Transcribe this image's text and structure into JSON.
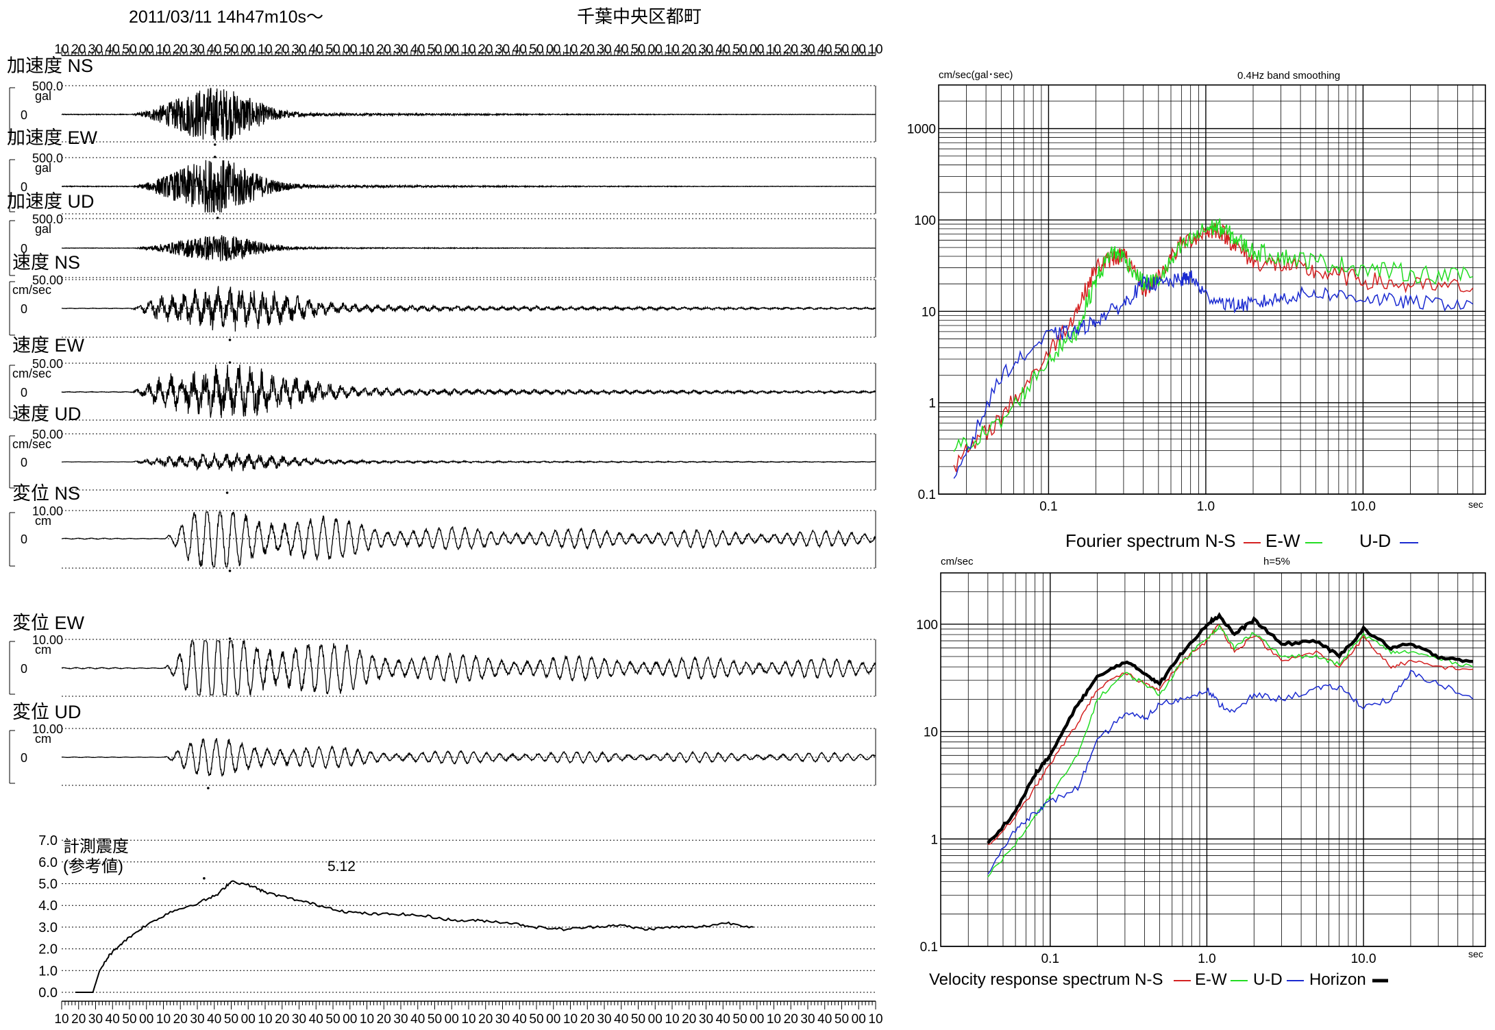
{
  "header": {
    "datetime": "2011/03/11  14h47m10s〜",
    "station": "千葉中央区都町"
  },
  "time_ticks": [
    "10",
    "20",
    "30",
    "40",
    "50",
    "00",
    "10",
    "20",
    "30",
    "40",
    "50",
    "00",
    "10",
    "20",
    "30",
    "40",
    "50",
    "00",
    "10",
    "20",
    "30",
    "40",
    "50",
    "00",
    "10",
    "20",
    "30",
    "40",
    "50",
    "00",
    "10",
    "20",
    "30",
    "40",
    "50",
    "00",
    "10",
    "20",
    "30",
    "40",
    "50",
    "00",
    "10",
    "20",
    "30",
    "40",
    "50",
    "00",
    "10"
  ],
  "traces": [
    {
      "label": "加速度 NS",
      "scale": "500.0",
      "unit": "gal",
      "zero": "0",
      "amp": 0.55,
      "kind": "acc",
      "peak_t": 11.3,
      "peak_dir": -1
    },
    {
      "label": "加速度 EW",
      "scale": "500.0",
      "unit": "gal",
      "zero": "0",
      "amp": 0.55,
      "kind": "acc",
      "peak_t": 11.3,
      "peak_dir": 1
    },
    {
      "label": "加速度 UD",
      "scale": "500.0",
      "unit": "gal",
      "zero": "0",
      "amp": 0.25,
      "kind": "acc",
      "peak_t": 11.5,
      "peak_dir": 1
    },
    {
      "label": "速度 NS",
      "scale": "50.00",
      "unit": "cm/sec",
      "zero": "0",
      "amp": 0.45,
      "kind": "vel",
      "peak_t": 12.4,
      "peak_dir": -1
    },
    {
      "label": "速度 EW",
      "scale": "50.00",
      "unit": "cm/sec",
      "zero": "0",
      "amp": 0.55,
      "kind": "vel",
      "peak_t": 12.4,
      "peak_dir": 1
    },
    {
      "label": "速度 UD",
      "scale": "50.00",
      "unit": "cm/sec",
      "zero": "0",
      "amp": 0.18,
      "kind": "vel",
      "peak_t": 12.2,
      "peak_dir": -1
    },
    {
      "label": "変位 NS",
      "scale": "10.00",
      "unit": "cm",
      "zero": "0",
      "amp": 0.6,
      "kind": "disp",
      "peak_t": 12.4,
      "peak_dir": -1
    },
    {
      "label": "変位 EW",
      "scale": "10.00",
      "unit": "cm",
      "zero": "0",
      "amp": 0.75,
      "kind": "disp",
      "peak_t": 12.4,
      "peak_dir": 1
    },
    {
      "label": "変位 UD",
      "scale": "10.00",
      "unit": "cm",
      "zero": "0",
      "amp": 0.35,
      "kind": "disp",
      "peak_t": 10.8,
      "peak_dir": -1
    }
  ],
  "intensity": {
    "label_line1": "計測震度",
    "label_line2": "(参考値)",
    "peak_label": "5.12",
    "peak_value": 5.12,
    "yticks": [
      "7.0",
      "6.0",
      "5.0",
      "4.0",
      "3.0",
      "2.0",
      "1.0",
      "0.0"
    ]
  },
  "fourier": {
    "unit_label": "cm/sec(gal･sec)",
    "smoothing_label": "0.4Hz band smoothing",
    "yticks": [
      "1000",
      "100",
      "10",
      "1",
      "0.1"
    ],
    "xticks": [
      "0.1",
      "1.0",
      "10.0"
    ],
    "x_unit": "sec",
    "caption": "Fourier spectrum  N-S",
    "legend": [
      {
        "name": "N-S",
        "color": "#d42020"
      },
      {
        "name": "E-W",
        "color": "#22dd22"
      },
      {
        "name": "U-D",
        "color": "#1a2ad0"
      }
    ],
    "legend_ew": "E-W",
    "legend_ud": "U-D"
  },
  "response": {
    "unit_label": "cm/sec",
    "damping_label": "h=5%",
    "yticks": [
      "100",
      "10",
      "1",
      "0.1"
    ],
    "xticks": [
      "0.1",
      "1.0",
      "10.0"
    ],
    "x_unit": "sec",
    "caption": "Velocity response spectrum N-S",
    "legend_ew": "E-W",
    "legend_ud": "U-D",
    "legend_h": "Horizon",
    "colors": {
      "ns": "#d42020",
      "ew": "#22dd22",
      "ud": "#1a2ad0",
      "horizon": "#000000"
    }
  },
  "chart_data": [
    {
      "type": "line",
      "title": "0.4Hz band smoothing",
      "ylabel": "cm/sec(gal･sec)",
      "xlabel": "sec",
      "xscale": "log",
      "yscale": "log",
      "xlim": [
        0.02,
        60
      ],
      "ylim": [
        0.1,
        3000
      ],
      "series": [
        {
          "name": "N-S",
          "x": [
            0.025,
            0.05,
            0.1,
            0.15,
            0.2,
            0.25,
            0.3,
            0.4,
            0.5,
            0.7,
            1.0,
            1.2,
            1.5,
            2.0,
            3.0,
            5.0,
            10,
            20,
            50
          ],
          "values": [
            0.2,
            0.7,
            3.5,
            10,
            30,
            38,
            42,
            17,
            24,
            55,
            75,
            80,
            55,
            35,
            32,
            27,
            22,
            19,
            18
          ]
        },
        {
          "name": "E-W",
          "x": [
            0.025,
            0.05,
            0.1,
            0.15,
            0.2,
            0.25,
            0.3,
            0.4,
            0.5,
            0.7,
            1.0,
            1.2,
            1.5,
            2.0,
            3.0,
            5.0,
            10,
            20,
            50
          ],
          "values": [
            0.3,
            0.6,
            3.0,
            6,
            22,
            45,
            40,
            20,
            22,
            50,
            80,
            85,
            65,
            45,
            40,
            35,
            30,
            26,
            24
          ]
        },
        {
          "name": "U-D",
          "x": [
            0.025,
            0.05,
            0.1,
            0.15,
            0.2,
            0.3,
            0.4,
            0.5,
            0.7,
            0.8,
            1.0,
            1.5,
            2.0,
            3.0,
            5.0,
            10,
            20,
            50
          ],
          "values": [
            0.15,
            2.0,
            5.5,
            6,
            8,
            12,
            20,
            20,
            22,
            24,
            15,
            11.5,
            12,
            14,
            16,
            14,
            12.5,
            12
          ]
        }
      ]
    },
    {
      "type": "line",
      "title": "h=5%",
      "ylabel": "cm/sec",
      "xlabel": "sec",
      "xscale": "log",
      "yscale": "log",
      "xlim": [
        0.02,
        60
      ],
      "ylim": [
        0.1,
        300
      ],
      "series": [
        {
          "name": "N-S",
          "x": [
            0.04,
            0.06,
            0.08,
            0.1,
            0.15,
            0.2,
            0.3,
            0.4,
            0.5,
            0.7,
            1.0,
            1.2,
            1.5,
            2.0,
            3.0,
            5.0,
            7.0,
            10,
            15,
            20,
            30,
            50
          ],
          "values": [
            0.85,
            1.6,
            3.0,
            5,
            12,
            25,
            35,
            28,
            25,
            45,
            70,
            100,
            55,
            80,
            45,
            55,
            40,
            75,
            40,
            45,
            40,
            38
          ]
        },
        {
          "name": "E-W",
          "x": [
            0.04,
            0.06,
            0.08,
            0.1,
            0.15,
            0.2,
            0.3,
            0.4,
            0.5,
            0.7,
            1.0,
            1.2,
            1.5,
            2.0,
            3.0,
            5.0,
            7.0,
            10,
            15,
            20,
            30,
            50
          ],
          "values": [
            0.45,
            0.9,
            1.6,
            2.5,
            6,
            20,
            35,
            28,
            22,
            45,
            75,
            95,
            60,
            85,
            50,
            50,
            42,
            80,
            55,
            55,
            48,
            40
          ]
        },
        {
          "name": "U-D",
          "x": [
            0.04,
            0.06,
            0.08,
            0.1,
            0.15,
            0.2,
            0.3,
            0.4,
            0.5,
            0.7,
            1.0,
            1.2,
            1.5,
            2.0,
            3.0,
            5.0,
            7.0,
            10,
            15,
            20,
            30,
            50
          ],
          "values": [
            0.5,
            1.2,
            1.8,
            2.2,
            3,
            8,
            15,
            13,
            18,
            20,
            25,
            18,
            15,
            22,
            20,
            25,
            26,
            17,
            20,
            35,
            28,
            20
          ]
        },
        {
          "name": "Horizon",
          "x": [
            0.04,
            0.06,
            0.08,
            0.1,
            0.15,
            0.2,
            0.3,
            0.4,
            0.5,
            0.7,
            1.0,
            1.2,
            1.5,
            2.0,
            3.0,
            5.0,
            7.0,
            10,
            15,
            20,
            30,
            50
          ],
          "values": [
            0.9,
            1.8,
            4.0,
            6,
            18,
            32,
            45,
            35,
            28,
            55,
            100,
            120,
            80,
            110,
            65,
            70,
            50,
            90,
            60,
            65,
            50,
            45
          ]
        }
      ]
    },
    {
      "type": "line",
      "title": "計測震度 (参考値)",
      "ylim": [
        0,
        7
      ],
      "series": [
        {
          "name": "計測震度",
          "x": [
            0,
            1.3,
            1.8,
            2.5,
            3.5,
            5,
            7,
            9,
            10.5,
            11.5,
            13,
            14,
            16,
            18,
            20,
            22,
            24,
            26,
            28,
            30,
            32,
            34,
            36,
            38,
            40,
            42,
            44,
            46,
            48,
            50
          ],
          "values": [
            0,
            0,
            1.0,
            1.7,
            2.3,
            3.0,
            3.7,
            4.1,
            4.5,
            5.12,
            4.9,
            4.6,
            4.3,
            4.0,
            3.7,
            3.6,
            3.6,
            3.5,
            3.3,
            3.3,
            3.2,
            3.0,
            2.9,
            3.0,
            3.1,
            2.9,
            3.0,
            3.0,
            3.2,
            3.0
          ]
        }
      ]
    }
  ]
}
